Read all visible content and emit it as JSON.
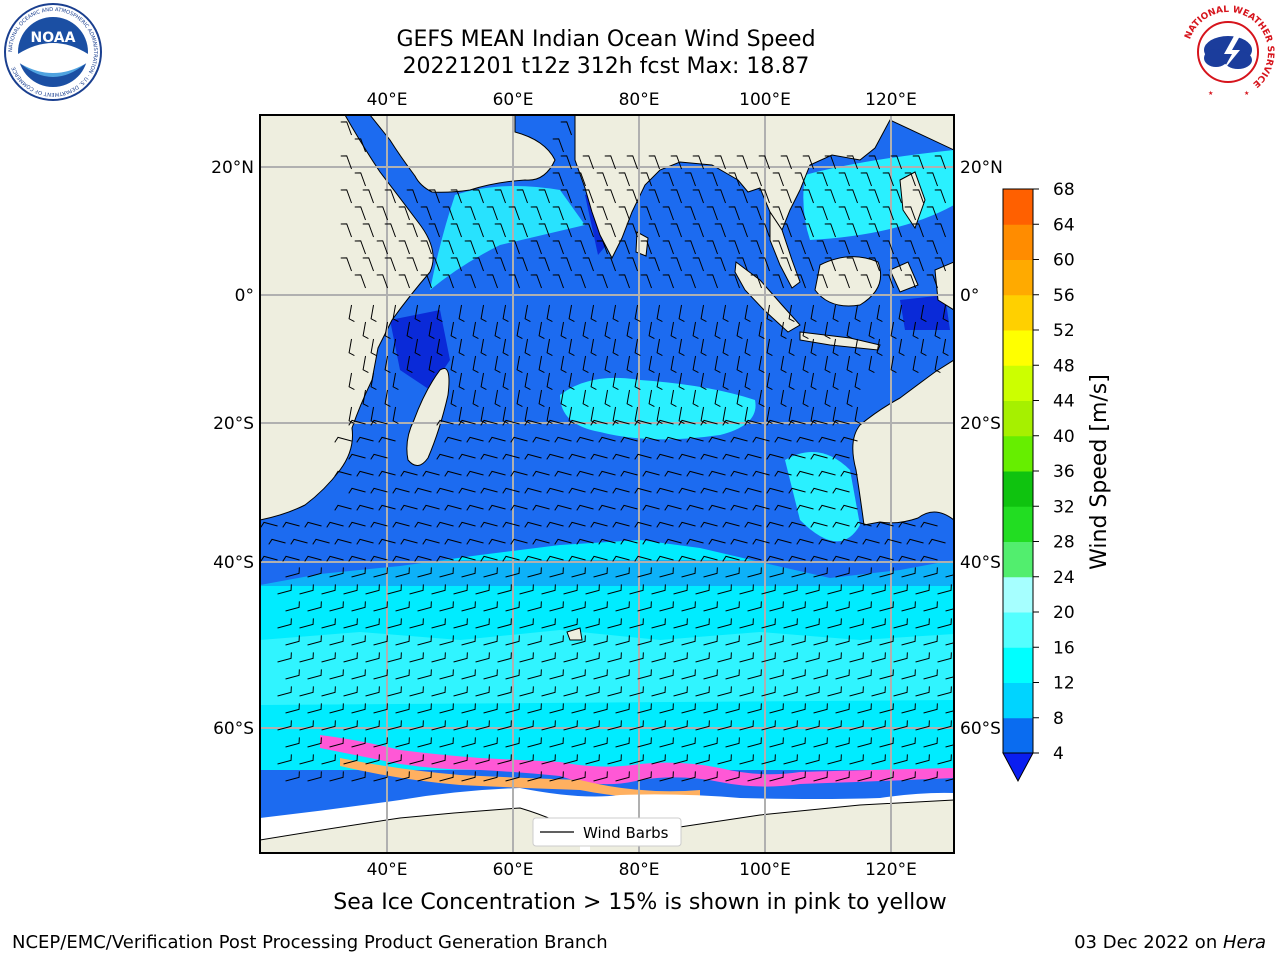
{
  "header": {
    "title_line1": "GEFS MEAN Indian Ocean Wind Speed",
    "title_line2": "20221201 t12z 312h fcst   Max: 18.87"
  },
  "logos": {
    "left": "NOAA",
    "left_ring_text": "NATIONAL OCEANIC AND ATMOSPHERIC ADMINISTRATION · U.S. DEPARTMENT OF COMMERCE",
    "right_ring_text": "NATIONAL WEATHER SERVICE"
  },
  "map": {
    "lon_labels": [
      "40°E",
      "60°E",
      "80°E",
      "100°E",
      "120°E"
    ],
    "lat_labels": [
      "20°N",
      "0°",
      "20°S",
      "40°S",
      "60°S"
    ],
    "legend_label": "Wind Barbs"
  },
  "colorbar": {
    "label": "Wind Speed [m/s]",
    "ticks": [
      "4",
      "8",
      "12",
      "16",
      "20",
      "24",
      "28",
      "32",
      "36",
      "40",
      "44",
      "48",
      "52",
      "56",
      "60",
      "64",
      "68"
    ],
    "colors": [
      "#0a6cf0",
      "#00d4ff",
      "#00ffff",
      "#54ffff",
      "#a6ffff",
      "#52ee6e",
      "#22dd22",
      "#0fc30f",
      "#66ee00",
      "#a6f000",
      "#ccff00",
      "#ffff00",
      "#ffd000",
      "#ffaa00",
      "#ff8c00",
      "#ff6000",
      "#ff3000",
      "#ff0000"
    ]
  },
  "caption": "Sea Ice Concentration > 15% is shown in pink to yellow",
  "footer": {
    "left": "NCEP/EMC/Verification Post Processing Product Generation Branch",
    "date": "03 Dec 2022 on ",
    "host": "Hera"
  }
}
